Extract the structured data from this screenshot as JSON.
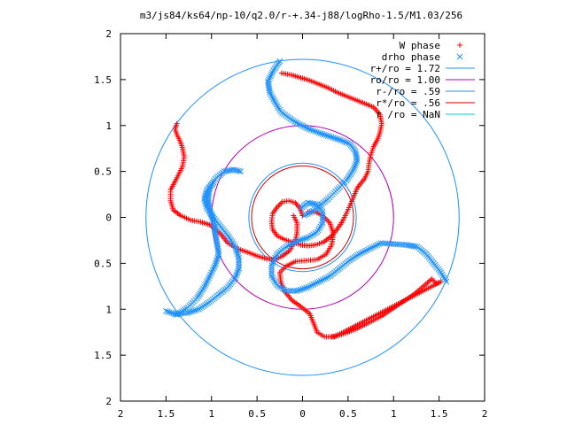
{
  "chart_data": {
    "type": "scatter",
    "title": "m3/js84/ks64/np-10/q2.0/r-+.34-j88/logRho-1.5/M1.03/256",
    "xlabel": "",
    "ylabel": "",
    "xlim": [
      2,
      -2
    ],
    "ylim": [
      -2,
      2
    ],
    "x_ticks": [
      2,
      1.5,
      1,
      0.5,
      0,
      -0.5,
      -1,
      -1.5,
      -2
    ],
    "x_tick_labels": [
      "2",
      "1.5",
      "1",
      "0.5",
      "0",
      "0.5",
      "1",
      "1.5",
      "2"
    ],
    "y_ticks": [
      2,
      1.5,
      1,
      0.5,
      0,
      -0.5,
      -1,
      -1.5,
      -2
    ],
    "y_tick_labels": [
      "2",
      "1.5",
      "1",
      "0.5",
      "0",
      "0.5",
      "1",
      "1.5",
      "2"
    ],
    "grid": false,
    "legend_position": "top-right",
    "series": [
      {
        "name": "W phase",
        "kind": "points",
        "marker": "plus",
        "color": "#ff0000",
        "points": [
          [
            0.23,
            1.57
          ],
          [
            0.12,
            1.55
          ],
          [
            0.02,
            1.52
          ],
          [
            -0.08,
            1.49
          ],
          [
            -0.18,
            1.45
          ],
          [
            -0.28,
            1.41
          ],
          [
            -0.38,
            1.36
          ],
          [
            -0.48,
            1.32
          ],
          [
            -0.58,
            1.28
          ],
          [
            -0.68,
            1.24
          ],
          [
            -0.78,
            1.2
          ],
          [
            -0.85,
            1.12
          ],
          [
            -0.87,
            1.02
          ],
          [
            -0.85,
            0.92
          ],
          [
            -0.82,
            0.84
          ],
          [
            -0.78,
            0.77
          ],
          [
            -0.75,
            0.68
          ],
          [
            -0.73,
            0.59
          ],
          [
            -0.72,
            0.5
          ],
          [
            -0.68,
            0.42
          ],
          [
            -0.6,
            0.32
          ],
          [
            -0.56,
            0.22
          ],
          [
            -0.52,
            0.13
          ],
          [
            -0.48,
            0.04
          ],
          [
            -0.44,
            -0.04
          ],
          [
            -0.38,
            -0.13
          ],
          [
            -0.31,
            -0.21
          ],
          [
            -0.23,
            -0.27
          ],
          [
            -0.14,
            -0.3
          ],
          [
            -0.06,
            -0.31
          ],
          [
            0.02,
            -0.3
          ],
          [
            0.11,
            -0.27
          ],
          [
            0.2,
            -0.24
          ],
          [
            0.28,
            -0.2
          ],
          [
            0.33,
            -0.13
          ],
          [
            0.34,
            -0.05
          ],
          [
            0.33,
            0.04
          ],
          [
            0.28,
            0.11
          ],
          [
            0.22,
            0.17
          ],
          [
            0.15,
            0.18
          ],
          [
            0.08,
            0.16
          ],
          [
            0.03,
            0.1
          ],
          [
            0.0,
            0.02
          ]
        ]
      },
      {
        "name": "W phase",
        "kind": "points",
        "marker": "plus",
        "color": "#ff0000",
        "points": [
          [
            1.38,
            1.02
          ],
          [
            1.4,
            0.96
          ],
          [
            1.38,
            0.9
          ],
          [
            1.35,
            0.84
          ],
          [
            1.32,
            0.76
          ],
          [
            1.3,
            0.66
          ],
          [
            1.32,
            0.55
          ],
          [
            1.38,
            0.43
          ],
          [
            1.45,
            0.3
          ],
          [
            1.45,
            0.18
          ],
          [
            1.42,
            0.08
          ],
          [
            1.34,
            0.02
          ],
          [
            1.23,
            -0.03
          ],
          [
            1.12,
            -0.05
          ],
          [
            1.02,
            -0.08
          ],
          [
            0.9,
            -0.18
          ],
          [
            0.82,
            -0.28
          ],
          [
            0.72,
            -0.34
          ],
          [
            0.6,
            -0.38
          ],
          [
            0.5,
            -0.42
          ],
          [
            0.4,
            -0.45
          ],
          [
            0.3,
            -0.46
          ],
          [
            0.22,
            -0.42
          ],
          [
            0.14,
            -0.36
          ],
          [
            0.08,
            -0.26
          ],
          [
            0.06,
            -0.16
          ],
          [
            0.06,
            -0.06
          ],
          [
            0.1,
            0.02
          ]
        ]
      },
      {
        "name": "W phase",
        "kind": "points",
        "marker": "plus",
        "color": "#ff0000",
        "points": [
          [
            -0.32,
            -1.3
          ],
          [
            -0.45,
            -1.27
          ],
          [
            -0.58,
            -1.22
          ],
          [
            -0.72,
            -1.15
          ],
          [
            -0.86,
            -1.08
          ],
          [
            -0.98,
            -1.0
          ],
          [
            -1.1,
            -0.92
          ],
          [
            -1.22,
            -0.84
          ],
          [
            -1.34,
            -0.74
          ],
          [
            -1.42,
            -0.67
          ],
          [
            -1.47,
            -0.72
          ],
          [
            -1.52,
            -0.7
          ],
          [
            -0.35,
            -1.3
          ],
          [
            -0.24,
            -1.3
          ],
          [
            -0.16,
            -1.25
          ],
          [
            -0.12,
            -1.15
          ],
          [
            -0.08,
            -1.05
          ],
          [
            0.02,
            -0.97
          ],
          [
            0.12,
            -0.9
          ],
          [
            0.2,
            -0.8
          ],
          [
            0.24,
            -0.7
          ],
          [
            0.25,
            -0.6
          ],
          [
            0.18,
            -0.53
          ],
          [
            0.08,
            -0.48
          ],
          [
            -0.04,
            -0.47
          ],
          [
            -0.16,
            -0.46
          ],
          [
            -0.26,
            -0.4
          ],
          [
            -0.32,
            -0.3
          ],
          [
            -0.34,
            -0.18
          ],
          [
            -0.3,
            -0.06
          ],
          [
            -0.22,
            0.02
          ],
          [
            -0.14,
            0.06
          ],
          [
            -0.06,
            0.06
          ]
        ]
      },
      {
        "name": "drho phase",
        "kind": "points",
        "marker": "cross",
        "color": "#1e90ff",
        "points": [
          [
            0.25,
            1.7
          ],
          [
            0.32,
            1.6
          ],
          [
            0.38,
            1.48
          ],
          [
            0.36,
            1.36
          ],
          [
            0.3,
            1.25
          ],
          [
            0.24,
            1.15
          ],
          [
            0.1,
            1.05
          ],
          [
            -0.05,
            0.97
          ],
          [
            -0.18,
            0.92
          ],
          [
            -0.3,
            0.88
          ],
          [
            -0.42,
            0.84
          ],
          [
            -0.52,
            0.8
          ],
          [
            -0.58,
            0.72
          ],
          [
            -0.6,
            0.62
          ],
          [
            -0.56,
            0.52
          ],
          [
            -0.48,
            0.4
          ],
          [
            -0.38,
            0.3
          ],
          [
            -0.28,
            0.2
          ],
          [
            -0.18,
            0.12
          ],
          [
            -0.1,
            0.06
          ],
          [
            -0.02,
            0.02
          ]
        ]
      },
      {
        "name": "drho phase",
        "kind": "points",
        "marker": "cross",
        "color": "#1e90ff",
        "points": [
          [
            0.68,
            0.5
          ],
          [
            0.76,
            0.52
          ],
          [
            0.86,
            0.5
          ],
          [
            0.96,
            0.42
          ],
          [
            1.02,
            0.32
          ],
          [
            1.04,
            0.2
          ],
          [
            1.02,
            0.08
          ],
          [
            0.98,
            -0.04
          ],
          [
            0.96,
            -0.16
          ],
          [
            0.94,
            -0.28
          ],
          [
            0.92,
            -0.4
          ],
          [
            0.96,
            -0.52
          ],
          [
            1.02,
            -0.64
          ],
          [
            1.08,
            -0.76
          ],
          [
            1.16,
            -0.88
          ],
          [
            1.26,
            -0.98
          ],
          [
            1.38,
            -1.06
          ],
          [
            1.5,
            -1.02
          ]
        ]
      },
      {
        "name": "drho phase",
        "kind": "points",
        "marker": "cross",
        "color": "#1e90ff",
        "points": [
          [
            -1.58,
            -0.7
          ],
          [
            -1.52,
            -0.6
          ],
          [
            -1.44,
            -0.5
          ],
          [
            -1.36,
            -0.4
          ],
          [
            -1.26,
            -0.32
          ],
          [
            -1.14,
            -0.3
          ],
          [
            -1.0,
            -0.29
          ],
          [
            -0.86,
            -0.28
          ],
          [
            -0.74,
            -0.34
          ],
          [
            -0.62,
            -0.4
          ],
          [
            -0.5,
            -0.48
          ],
          [
            -0.4,
            -0.56
          ],
          [
            -0.3,
            -0.64
          ],
          [
            -0.18,
            -0.7
          ],
          [
            -0.06,
            -0.76
          ],
          [
            0.06,
            -0.8
          ],
          [
            0.18,
            -0.8
          ],
          [
            0.28,
            -0.74
          ],
          [
            0.34,
            -0.64
          ],
          [
            0.34,
            -0.52
          ],
          [
            0.28,
            -0.4
          ],
          [
            0.18,
            -0.32
          ],
          [
            0.06,
            -0.26
          ],
          [
            -0.06,
            -0.22
          ],
          [
            -0.16,
            -0.16
          ],
          [
            -0.22,
            -0.06
          ],
          [
            -0.22,
            0.06
          ],
          [
            -0.16,
            0.14
          ],
          [
            -0.06,
            0.16
          ],
          [
            0.02,
            0.1
          ]
        ]
      },
      {
        "name": "drho phase",
        "kind": "points",
        "marker": "cross",
        "color": "#1e90ff",
        "points": [
          [
            1.38,
            -1.05
          ],
          [
            1.26,
            -1.04
          ],
          [
            1.14,
            -1.0
          ],
          [
            1.02,
            -0.92
          ],
          [
            0.92,
            -0.84
          ],
          [
            0.82,
            -0.76
          ],
          [
            0.74,
            -0.66
          ],
          [
            0.7,
            -0.56
          ],
          [
            0.7,
            -0.44
          ],
          [
            0.74,
            -0.32
          ],
          [
            0.82,
            -0.2
          ],
          [
            0.9,
            -0.1
          ],
          [
            0.98,
            0.0
          ],
          [
            1.05,
            0.1
          ],
          [
            1.08,
            0.2
          ],
          [
            1.05,
            0.3
          ],
          [
            0.98,
            0.38
          ]
        ]
      },
      {
        "name": "r+/ro = 1.72",
        "kind": "circle",
        "r": 1.72,
        "color": "#1e90ff"
      },
      {
        "name": "ro/ro = 1.00",
        "kind": "circle",
        "r": 1.0,
        "color": "#b400b4"
      },
      {
        "name": "r-/ro = .59",
        "kind": "circle",
        "r": 0.59,
        "color": "#1e90ff"
      },
      {
        "name": "r*/ro = .56",
        "kind": "circle",
        "r": 0.56,
        "color": "#cc0000"
      },
      {
        "name": "r /ro = NaN",
        "kind": "circle",
        "r": null,
        "color": "#00cccc"
      }
    ],
    "legend": [
      {
        "label": "W phase",
        "marker": "plus",
        "color": "#ff0000"
      },
      {
        "label": "drho phase",
        "marker": "cross",
        "color": "#1e90ff"
      },
      {
        "label": "r+/ro = 1.72",
        "marker": "line",
        "color": "#1e90ff"
      },
      {
        "label": "ro/ro = 1.00",
        "marker": "line",
        "color": "#b400b4"
      },
      {
        "label": "r-/ro = .59",
        "marker": "line",
        "color": "#1e90ff"
      },
      {
        "label": "r*/ro = .56",
        "marker": "line",
        "color": "#cc0000"
      },
      {
        "label": "r /ro = NaN",
        "marker": "line",
        "color": "#00cccc"
      }
    ]
  }
}
